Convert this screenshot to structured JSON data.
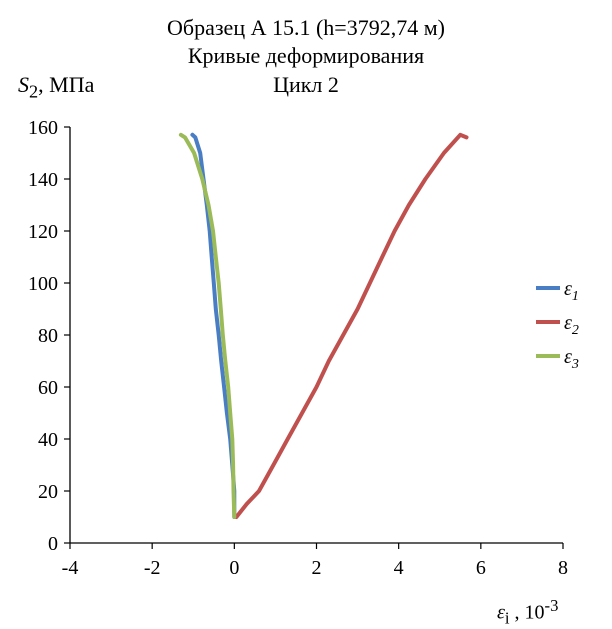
{
  "title_lines": [
    "Образец А 15.1 (h=3792,74 м)",
    "Кривые деформирования",
    "Цикл 2"
  ],
  "ylabel": {
    "symbol": "S",
    "sub": "2",
    "unit": ", МПа"
  },
  "xlabel": {
    "symbol": "ε",
    "sub": "i",
    "unit": " , 10",
    "exp": "-3"
  },
  "chart_data": {
    "type": "line",
    "title": "Образец А 15.1 (h=3792,74 м) Кривые деформирования Цикл 2",
    "xlabel": "εi , 10-3",
    "ylabel": "S2 , МПа",
    "xlim": [
      -4,
      8
    ],
    "ylim": [
      0,
      160
    ],
    "xticks": [
      -4,
      -2,
      0,
      2,
      4,
      6,
      8
    ],
    "yticks": [
      0,
      20,
      40,
      60,
      80,
      100,
      120,
      140,
      160
    ],
    "grid": false,
    "legend_position": "right",
    "series": [
      {
        "name": "ε1",
        "sub": "1",
        "color": "#4a7ec4",
        "points": [
          [
            0.0,
            10
          ],
          [
            0.0,
            20
          ],
          [
            -0.05,
            30
          ],
          [
            -0.1,
            40
          ],
          [
            -0.18,
            50
          ],
          [
            -0.25,
            60
          ],
          [
            -0.32,
            70
          ],
          [
            -0.38,
            80
          ],
          [
            -0.45,
            90
          ],
          [
            -0.5,
            100
          ],
          [
            -0.55,
            110
          ],
          [
            -0.6,
            120
          ],
          [
            -0.67,
            130
          ],
          [
            -0.75,
            140
          ],
          [
            -0.83,
            150
          ],
          [
            -0.95,
            156
          ],
          [
            -1.02,
            157
          ]
        ]
      },
      {
        "name": "ε2",
        "sub": "2",
        "color": "#c0504d",
        "points": [
          [
            0.05,
            10
          ],
          [
            0.3,
            15
          ],
          [
            0.6,
            20
          ],
          [
            0.95,
            30
          ],
          [
            1.3,
            40
          ],
          [
            1.65,
            50
          ],
          [
            2.0,
            60
          ],
          [
            2.3,
            70
          ],
          [
            2.65,
            80
          ],
          [
            3.0,
            90
          ],
          [
            3.3,
            100
          ],
          [
            3.6,
            110
          ],
          [
            3.9,
            120
          ],
          [
            4.25,
            130
          ],
          [
            4.65,
            140
          ],
          [
            5.1,
            150
          ],
          [
            5.5,
            157
          ],
          [
            5.65,
            156
          ]
        ]
      },
      {
        "name": "ε3",
        "sub": "3",
        "color": "#9bbb59",
        "points": [
          [
            0.0,
            10
          ],
          [
            -0.02,
            20
          ],
          [
            -0.03,
            30
          ],
          [
            -0.05,
            40
          ],
          [
            -0.1,
            50
          ],
          [
            -0.15,
            60
          ],
          [
            -0.22,
            70
          ],
          [
            -0.28,
            80
          ],
          [
            -0.33,
            90
          ],
          [
            -0.38,
            100
          ],
          [
            -0.45,
            110
          ],
          [
            -0.52,
            120
          ],
          [
            -0.63,
            130
          ],
          [
            -0.78,
            140
          ],
          [
            -0.98,
            150
          ],
          [
            -1.2,
            156
          ],
          [
            -1.3,
            157
          ]
        ]
      }
    ]
  }
}
